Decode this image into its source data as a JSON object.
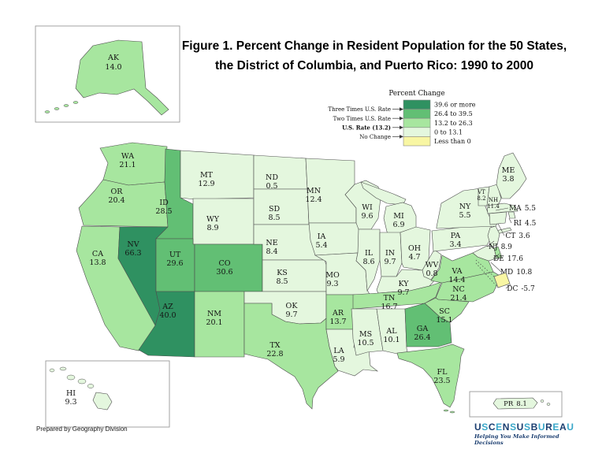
{
  "title": {
    "line1": "Figure 1.  Percent Change in Resident Population for the 50 States,",
    "line2": "the District of Columbia, and Puerto Rico: 1990 to 2000"
  },
  "legend": {
    "title": "Percent Change",
    "classes": [
      {
        "range": "39.6 or more",
        "color": "#2f9161"
      },
      {
        "range": "26.4 to 39.5",
        "color": "#62bf74"
      },
      {
        "range": "13.2 to 26.3",
        "color": "#a7e69f"
      },
      {
        "range": "0 to 13.1",
        "color": "#e4f7de"
      },
      {
        "range": "Less than 0",
        "color": "#f8f6a3"
      }
    ],
    "pointers": [
      {
        "label": "Three Times U.S. Rate",
        "bold": false
      },
      {
        "label": "Two Times U.S. Rate",
        "bold": false
      },
      {
        "label": "U.S. Rate (13.2)",
        "bold": true
      },
      {
        "label": "No Change",
        "bold": false
      }
    ]
  },
  "map": {
    "states": [
      {
        "abbr": "WA",
        "value": "21.1",
        "cat": 2
      },
      {
        "abbr": "OR",
        "value": "20.4",
        "cat": 2
      },
      {
        "abbr": "CA",
        "value": "13.8",
        "cat": 2
      },
      {
        "abbr": "NV",
        "value": "66.3",
        "cat": 0
      },
      {
        "abbr": "ID",
        "value": "28.5",
        "cat": 1
      },
      {
        "abbr": "MT",
        "value": "12.9",
        "cat": 3
      },
      {
        "abbr": "WY",
        "value": "8.9",
        "cat": 3
      },
      {
        "abbr": "UT",
        "value": "29.6",
        "cat": 1
      },
      {
        "abbr": "CO",
        "value": "30.6",
        "cat": 1
      },
      {
        "abbr": "AZ",
        "value": "40.0",
        "cat": 0
      },
      {
        "abbr": "NM",
        "value": "20.1",
        "cat": 2
      },
      {
        "abbr": "ND",
        "value": "0.5",
        "cat": 3
      },
      {
        "abbr": "SD",
        "value": "8.5",
        "cat": 3
      },
      {
        "abbr": "NE",
        "value": "8.4",
        "cat": 3
      },
      {
        "abbr": "KS",
        "value": "8.5",
        "cat": 3
      },
      {
        "abbr": "OK",
        "value": "9.7",
        "cat": 3
      },
      {
        "abbr": "TX",
        "value": "22.8",
        "cat": 2
      },
      {
        "abbr": "MN",
        "value": "12.4",
        "cat": 3
      },
      {
        "abbr": "IA",
        "value": "5.4",
        "cat": 3
      },
      {
        "abbr": "MO",
        "value": "9.3",
        "cat": 3
      },
      {
        "abbr": "AR",
        "value": "13.7",
        "cat": 2
      },
      {
        "abbr": "LA",
        "value": "5.9",
        "cat": 3
      },
      {
        "abbr": "WI",
        "value": "9.6",
        "cat": 3
      },
      {
        "abbr": "IL",
        "value": "8.6",
        "cat": 3
      },
      {
        "abbr": "MI",
        "value": "6.9",
        "cat": 3
      },
      {
        "abbr": "IN",
        "value": "9.7",
        "cat": 3
      },
      {
        "abbr": "OH",
        "value": "4.7",
        "cat": 3
      },
      {
        "abbr": "KY",
        "value": "9.7",
        "cat": 3
      },
      {
        "abbr": "TN",
        "value": "16.7",
        "cat": 2
      },
      {
        "abbr": "MS",
        "value": "10.5",
        "cat": 3
      },
      {
        "abbr": "AL",
        "value": "10.1",
        "cat": 3
      },
      {
        "abbr": "GA",
        "value": "26.4",
        "cat": 1
      },
      {
        "abbr": "FL",
        "value": "23.5",
        "cat": 2
      },
      {
        "abbr": "SC",
        "value": "15.1",
        "cat": 2
      },
      {
        "abbr": "NC",
        "value": "21.4",
        "cat": 2
      },
      {
        "abbr": "VA",
        "value": "14.4",
        "cat": 2
      },
      {
        "abbr": "WV",
        "value": "0.8",
        "cat": 3
      },
      {
        "abbr": "PA",
        "value": "3.4",
        "cat": 3
      },
      {
        "abbr": "NY",
        "value": "5.5",
        "cat": 3
      },
      {
        "abbr": "VT",
        "value": "8.2",
        "cat": 3
      },
      {
        "abbr": "NH",
        "value": "11.4",
        "cat": 3
      },
      {
        "abbr": "ME",
        "value": "3.8",
        "cat": 3
      },
      {
        "abbr": "MA",
        "value": "5.5",
        "cat": 3
      },
      {
        "abbr": "RI",
        "value": "4.5",
        "cat": 3
      },
      {
        "abbr": "CT",
        "value": "3.6",
        "cat": 3
      },
      {
        "abbr": "NJ",
        "value": "8.9",
        "cat": 3
      },
      {
        "abbr": "DE",
        "value": "17.6",
        "cat": 2
      },
      {
        "abbr": "MD",
        "value": "10.8",
        "cat": 3
      },
      {
        "abbr": "DC",
        "value": "-5.7",
        "cat": 4
      },
      {
        "abbr": "AK",
        "value": "14.0",
        "cat": 2
      },
      {
        "abbr": "HI",
        "value": "9.3",
        "cat": 3
      },
      {
        "abbr": "PR",
        "value": "8.1",
        "cat": 3
      }
    ]
  },
  "footer": {
    "credit": "Prepared by Geography Division"
  },
  "logo": {
    "text": "USCENSUSBUREAU",
    "tagline": "Helping You Make Informed Decisions",
    "navy": "#1b3e70",
    "teal": "#3aa7c9"
  }
}
